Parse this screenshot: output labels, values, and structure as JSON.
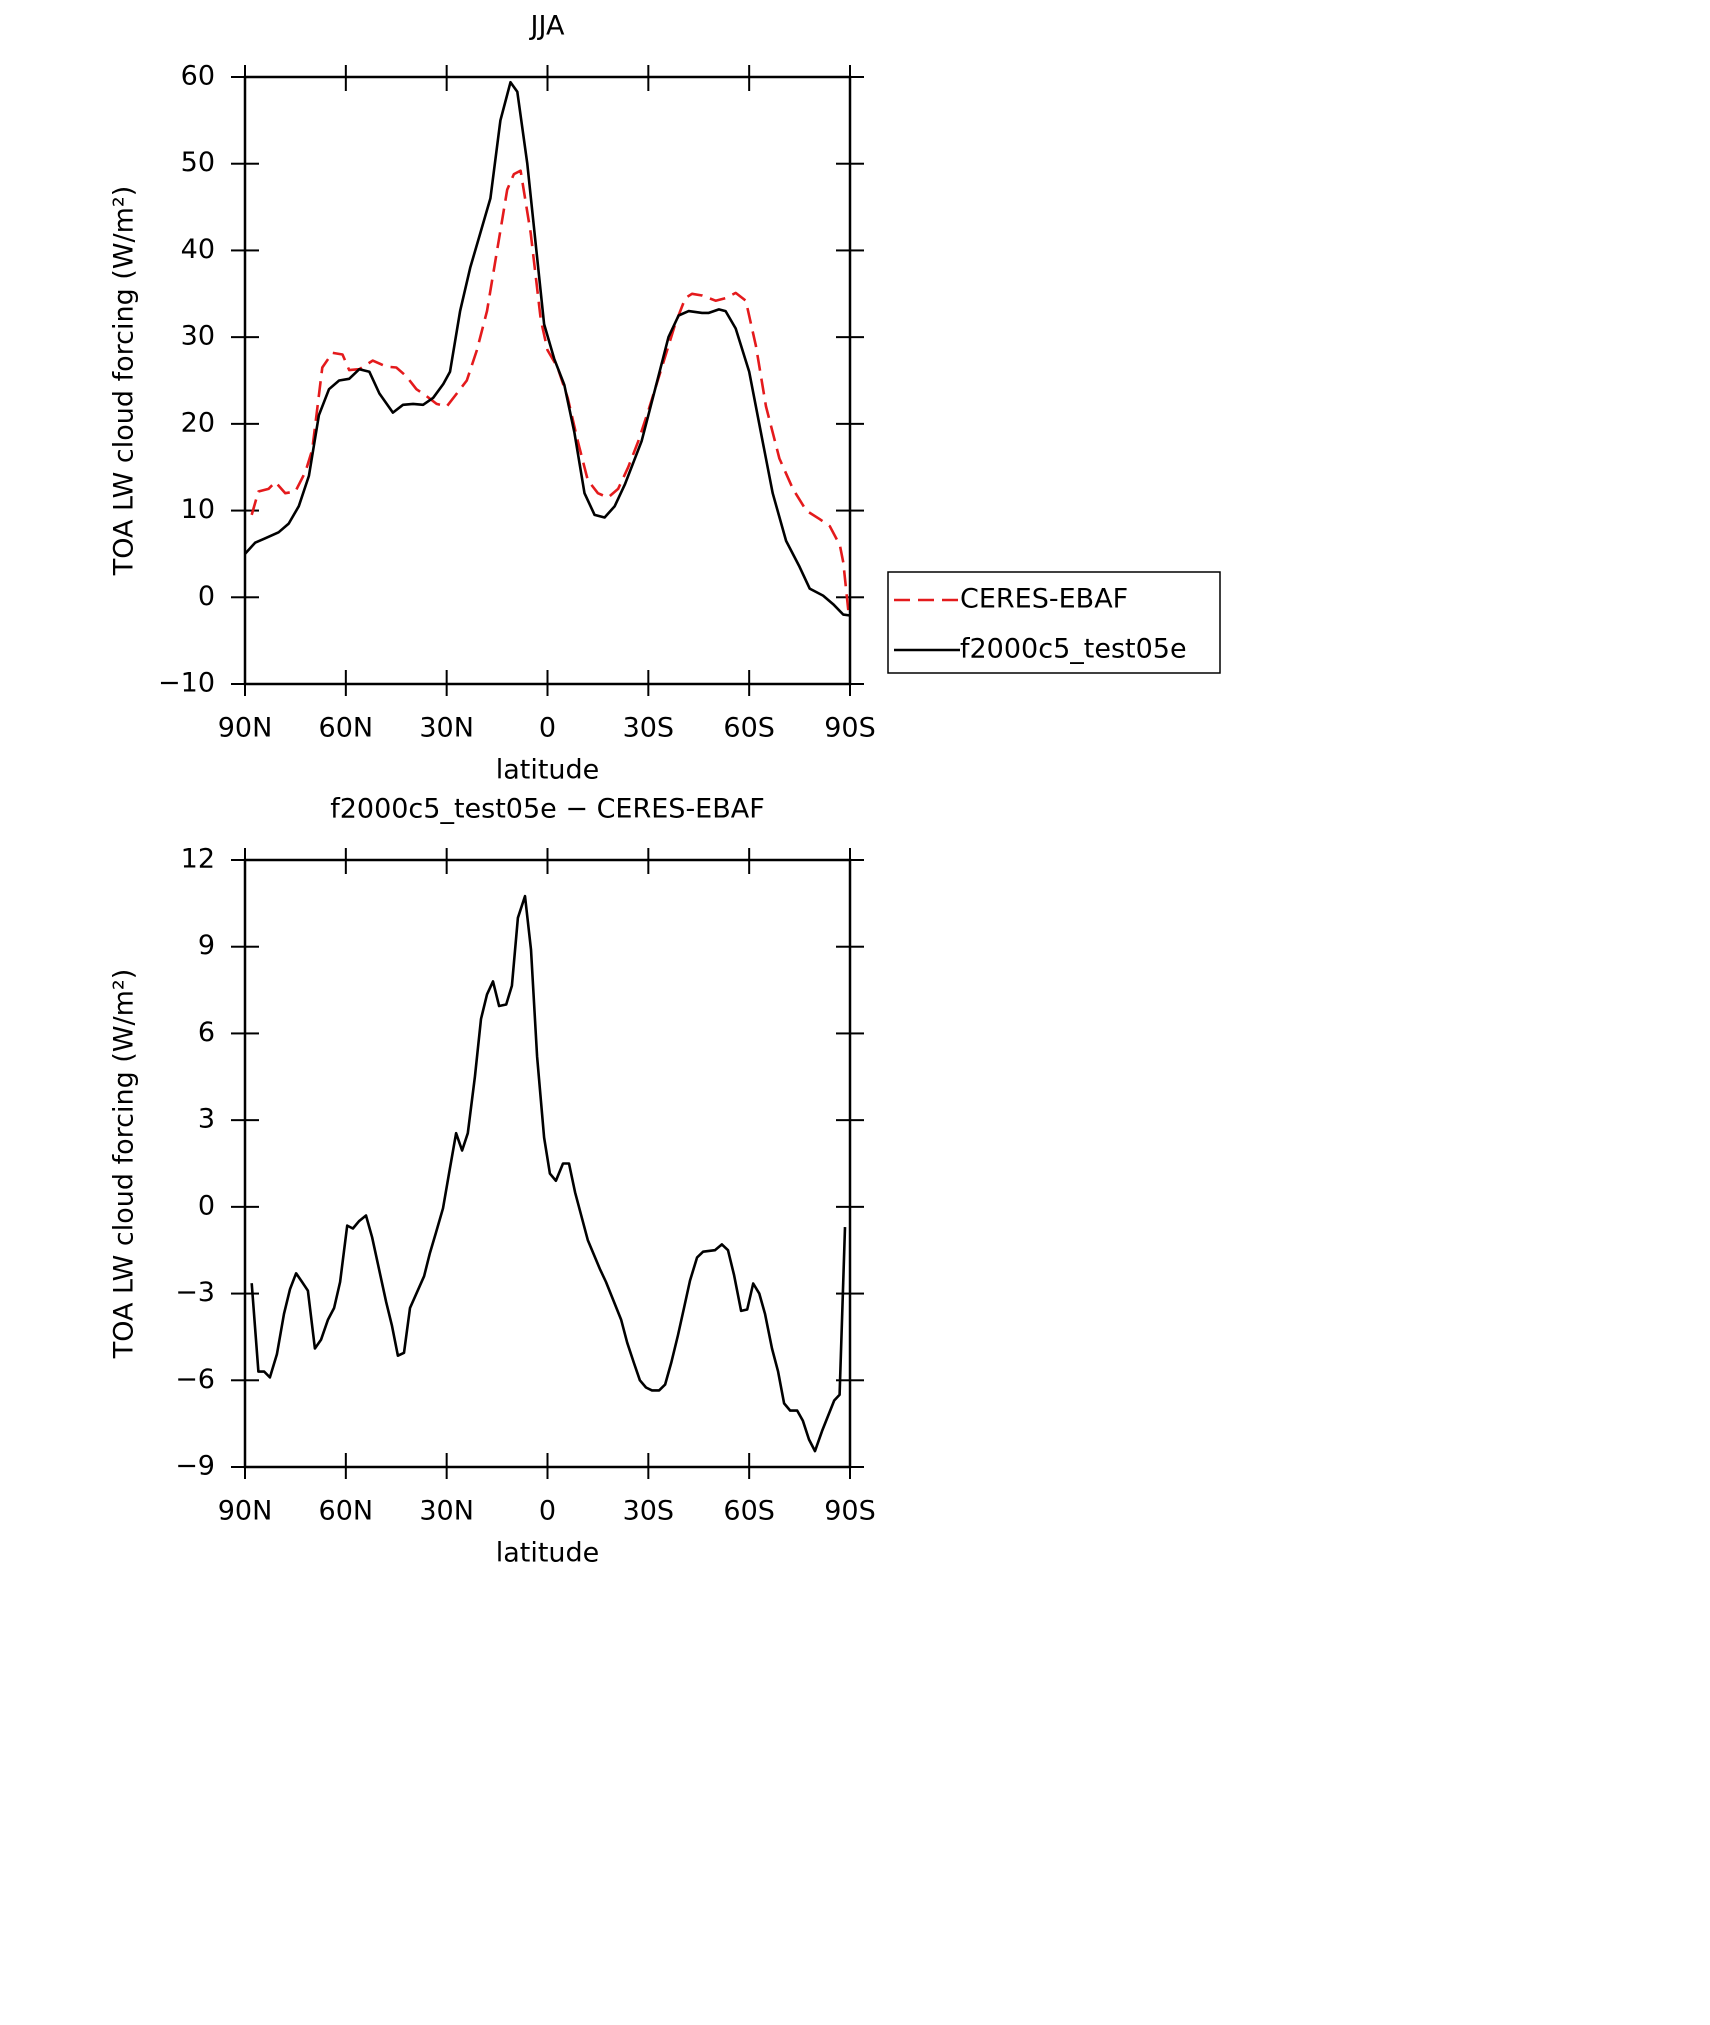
{
  "chart_data": [
    {
      "type": "line",
      "title": "JJA",
      "xlabel": "latitude",
      "ylabel": "TOA LW cloud forcing (W/m²)",
      "xlim": [
        90,
        -90
      ],
      "ylim": [
        -10,
        60
      ],
      "xticks": [
        {
          "value": 90,
          "label": "90N"
        },
        {
          "value": 60,
          "label": "60N"
        },
        {
          "value": 30,
          "label": "30N"
        },
        0,
        {
          "value": -30,
          "label": "30S"
        },
        {
          "value": -60,
          "label": "60S"
        },
        {
          "value": -90,
          "label": "90S"
        }
      ],
      "yticks": [
        {
          "value": -10,
          "label": "−10"
        },
        0,
        10,
        20,
        30,
        40,
        50,
        60
      ],
      "legend": "right",
      "series": [
        {
          "name": "CERES-EBAF",
          "color": "#e41a1c",
          "dash": true,
          "x": [
            88,
            86,
            83,
            81,
            78,
            75,
            72,
            70,
            67,
            64,
            61,
            59,
            56,
            52,
            48,
            45,
            42,
            39,
            36,
            33,
            30,
            27,
            24,
            21,
            18,
            15,
            12,
            10,
            8,
            5,
            2,
            0,
            -3,
            -6,
            -9,
            -12,
            -15,
            -18,
            -21,
            -24,
            -27,
            -30,
            -34,
            -38,
            -41,
            -43,
            -46,
            -50,
            -53,
            -56,
            -59,
            -62,
            -65,
            -69,
            -73,
            -77,
            -81,
            -84,
            -87,
            -88,
            -89.5
          ],
          "values": [
            9.5,
            12.2,
            12.5,
            13.3,
            12,
            12.2,
            14.5,
            17,
            26.5,
            28.2,
            28,
            26.2,
            26.3,
            27.3,
            26.6,
            26.5,
            25.5,
            24,
            23.2,
            22.3,
            22,
            23.5,
            25,
            28.5,
            33,
            40,
            47,
            48.8,
            49.2,
            42,
            32,
            28.5,
            26.5,
            23,
            18,
            13.5,
            12,
            11.5,
            12.5,
            15,
            18,
            21.5,
            26.5,
            31.5,
            34.5,
            35,
            34.8,
            34.2,
            34.5,
            35.1,
            34.2,
            29,
            22,
            16,
            12.5,
            10,
            9,
            8.2,
            6,
            4,
            -1.5
          ]
        },
        {
          "name": "f2000c5_test05e",
          "color": "#000000",
          "dash": false,
          "x": [
            90,
            87,
            84,
            80,
            77,
            74,
            71,
            68,
            65,
            62,
            59,
            56,
            53,
            50,
            46,
            43,
            40,
            37,
            34,
            31,
            29,
            26,
            23,
            20,
            17,
            14,
            11,
            9,
            6,
            1,
            -2,
            -5,
            -8,
            -11,
            -14,
            -17,
            -20,
            -23,
            -28,
            -32,
            -36,
            -39,
            -42,
            -46,
            -48,
            -51,
            -53,
            -56,
            -60,
            -64,
            -67,
            -71,
            -75,
            -78,
            -82,
            -85,
            -88,
            -90
          ],
          "values": [
            5,
            6.3,
            6.8,
            7.5,
            8.5,
            10.5,
            14,
            21,
            24,
            25,
            25.2,
            26.3,
            26,
            23.5,
            21.3,
            22.2,
            22.3,
            22.2,
            23,
            24.6,
            26,
            33,
            38,
            42,
            46,
            55,
            59.4,
            58.3,
            50,
            31.5,
            27.5,
            24.5,
            19,
            12,
            9.5,
            9.2,
            10.5,
            13,
            18,
            24,
            30,
            32.5,
            33,
            32.8,
            32.8,
            33.2,
            33,
            31,
            26,
            18,
            12,
            6.5,
            3.5,
            1,
            0.2,
            -0.8,
            -2,
            -2.1
          ]
        }
      ]
    },
    {
      "type": "line",
      "title": "f2000c5_test05e − CERES-EBAF",
      "xlabel": "latitude",
      "ylabel": "TOA LW cloud forcing (W/m²)",
      "xlim": [
        90,
        -90
      ],
      "ylim": [
        -9,
        12
      ],
      "xticks": [
        {
          "value": 90,
          "label": "90N"
        },
        {
          "value": 60,
          "label": "60N"
        },
        {
          "value": 30,
          "label": "30N"
        },
        0,
        {
          "value": -30,
          "label": "30S"
        },
        {
          "value": -60,
          "label": "60S"
        },
        {
          "value": -90,
          "label": "90S"
        }
      ],
      "yticks": [
        {
          "value": -9,
          "label": "−9"
        },
        {
          "value": -6,
          "label": "−6"
        },
        {
          "value": -3,
          "label": "−3"
        },
        0,
        3,
        6,
        9,
        12
      ],
      "series": [
        {
          "color": "#000000",
          "dash": false,
          "x": [
            88,
            86,
            84.3,
            82.6,
            80.5,
            78.4,
            76.6,
            74.8,
            73,
            71.3,
            69.2,
            67.4,
            65.3,
            63.5,
            61.7,
            59.6,
            57.9,
            56.1,
            54,
            52.2,
            48,
            46.3,
            44.5,
            42.7,
            40.9,
            36.7,
            35,
            33.2,
            31.1,
            29.3,
            27.2,
            25.4,
            23.7,
            21.6,
            19.8,
            18,
            16.2,
            14.4,
            12.3,
            10.6,
            8.8,
            6.7,
            4.9,
            3.1,
            1,
            -0.7,
            -2.5,
            -4.6,
            -6.4,
            -8.2,
            -12,
            -15.6,
            -17.4,
            -21.9,
            -23.7,
            -25.7,
            -27.5,
            -29.3,
            -31.1,
            -33.2,
            -35,
            -36.8,
            -38.8,
            -40.6,
            -42.4,
            -44.5,
            -46.3,
            -49.8,
            -51.9,
            -53.7,
            -55.5,
            -57.6,
            -59.4,
            -61.2,
            -63,
            -64.7,
            -66.8,
            -68.6,
            -70.4,
            -72.2,
            -74.3,
            -76,
            -77.8,
            -79.6,
            -81.7,
            -85.3,
            -86.9,
            -88.5
          ],
          "values": [
            -2.64,
            -5.7,
            -5.7,
            -5.9,
            -5.1,
            -3.7,
            -2.85,
            -2.3,
            -2.6,
            -2.9,
            -4.9,
            -4.6,
            -3.9,
            -3.5,
            -2.6,
            -0.65,
            -0.75,
            -0.5,
            -0.3,
            -1.05,
            -3.3,
            -4.1,
            -5.15,
            -5.05,
            -3.5,
            -2.4,
            -1.6,
            -0.9,
            -0.05,
            1.15,
            2.55,
            1.95,
            2.55,
            4.5,
            6.5,
            7.35,
            7.8,
            6.95,
            7,
            7.65,
            10,
            10.75,
            8.9,
            5.2,
            2.4,
            1.15,
            0.9,
            1.5,
            1.5,
            0.5,
            -1.15,
            -2.15,
            -2.6,
            -3.9,
            -4.7,
            -5.4,
            -6,
            -6.25,
            -6.35,
            -6.35,
            -6.15,
            -5.4,
            -4.45,
            -3.5,
            -2.55,
            -1.75,
            -1.55,
            -1.5,
            -1.3,
            -1.5,
            -2.35,
            -3.6,
            -3.55,
            -2.65,
            -3,
            -3.7,
            -4.9,
            -5.7,
            -6.8,
            -7.05,
            -7.05,
            -7.4,
            -8.05,
            -8.45,
            -7.75,
            -6.7,
            -6.5,
            -0.7
          ]
        }
      ]
    }
  ]
}
